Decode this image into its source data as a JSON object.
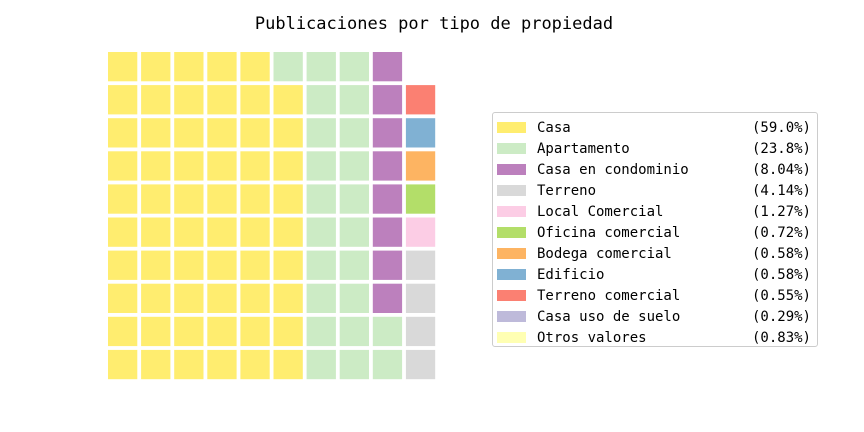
{
  "chart_data": {
    "type": "waffle",
    "title": "Publicaciones por tipo de propiedad",
    "rows": 10,
    "columns": 10,
    "categories": [
      {
        "name": "Casa",
        "percent": 59.0,
        "percent_label": "(59.0%)",
        "color": "#ffed6f",
        "blocks": 59
      },
      {
        "name": "Apartamento",
        "percent": 23.8,
        "percent_label": "(23.8%)",
        "color": "#ccebc5",
        "blocks": 23
      },
      {
        "name": "Casa en condominio",
        "percent": 8.04,
        "percent_label": "(8.04%)",
        "color": "#bc80bd",
        "blocks": 8
      },
      {
        "name": "Terreno",
        "percent": 4.14,
        "percent_label": "(4.14%)",
        "color": "#d9d9d9",
        "blocks": 4
      },
      {
        "name": "Local Comercial",
        "percent": 1.27,
        "percent_label": "(1.27%)",
        "color": "#fccde5",
        "blocks": 1
      },
      {
        "name": "Oficina comercial",
        "percent": 0.72,
        "percent_label": "(0.72%)",
        "color": "#b3de69",
        "blocks": 1
      },
      {
        "name": "Bodega comercial",
        "percent": 0.58,
        "percent_label": "(0.58%)",
        "color": "#fdb462",
        "blocks": 1
      },
      {
        "name": "Edificio",
        "percent": 0.58,
        "percent_label": "(0.58%)",
        "color": "#80b1d3",
        "blocks": 1
      },
      {
        "name": "Terreno comercial",
        "percent": 0.55,
        "percent_label": "(0.55%)",
        "color": "#fb8072",
        "blocks": 1
      },
      {
        "name": "Casa uso de suelo",
        "percent": 0.29,
        "percent_label": "(0.29%)",
        "color": "#bebada",
        "blocks": 0
      },
      {
        "name": "Otros valores",
        "percent": 0.83,
        "percent_label": "(0.83%)",
        "color": "#ffffb3",
        "blocks": 0
      }
    ],
    "block_sequence": [
      "Casa",
      "Casa",
      "Casa",
      "Casa",
      "Casa",
      "Casa",
      "Casa",
      "Casa",
      "Casa",
      "Casa",
      "Casa",
      "Casa",
      "Casa",
      "Casa",
      "Casa",
      "Casa",
      "Casa",
      "Casa",
      "Casa",
      "Casa",
      "Casa",
      "Casa",
      "Casa",
      "Casa",
      "Casa",
      "Casa",
      "Casa",
      "Casa",
      "Casa",
      "Casa",
      "Casa",
      "Casa",
      "Casa",
      "Casa",
      "Casa",
      "Casa",
      "Casa",
      "Casa",
      "Casa",
      "Casa",
      "Casa",
      "Casa",
      "Casa",
      "Casa",
      "Casa",
      "Casa",
      "Casa",
      "Casa",
      "Casa",
      "Casa",
      "Casa",
      "Casa",
      "Casa",
      "Casa",
      "Casa",
      "Casa",
      "Casa",
      "Casa",
      "Casa",
      "Apartamento",
      "Apartamento",
      "Apartamento",
      "Apartamento",
      "Apartamento",
      "Apartamento",
      "Apartamento",
      "Apartamento",
      "Apartamento",
      "Apartamento",
      "Apartamento",
      "Apartamento",
      "Apartamento",
      "Apartamento",
      "Apartamento",
      "Apartamento",
      "Apartamento",
      "Apartamento",
      "Apartamento",
      "Apartamento",
      "Apartamento",
      "Apartamento",
      "Apartamento",
      "Casa en condominio",
      "Casa en condominio",
      "Casa en condominio",
      "Casa en condominio",
      "Casa en condominio",
      "Casa en condominio",
      "Casa en condominio",
      "Casa en condominio",
      "Terreno",
      "Terreno",
      "Terreno",
      "Terreno",
      "Local Comercial",
      "Oficina comercial",
      "Bodega comercial",
      "Edificio",
      "Terreno comercial"
    ],
    "fill_order": "column-major from bottom-left, upward then right",
    "legend_position": "right"
  }
}
